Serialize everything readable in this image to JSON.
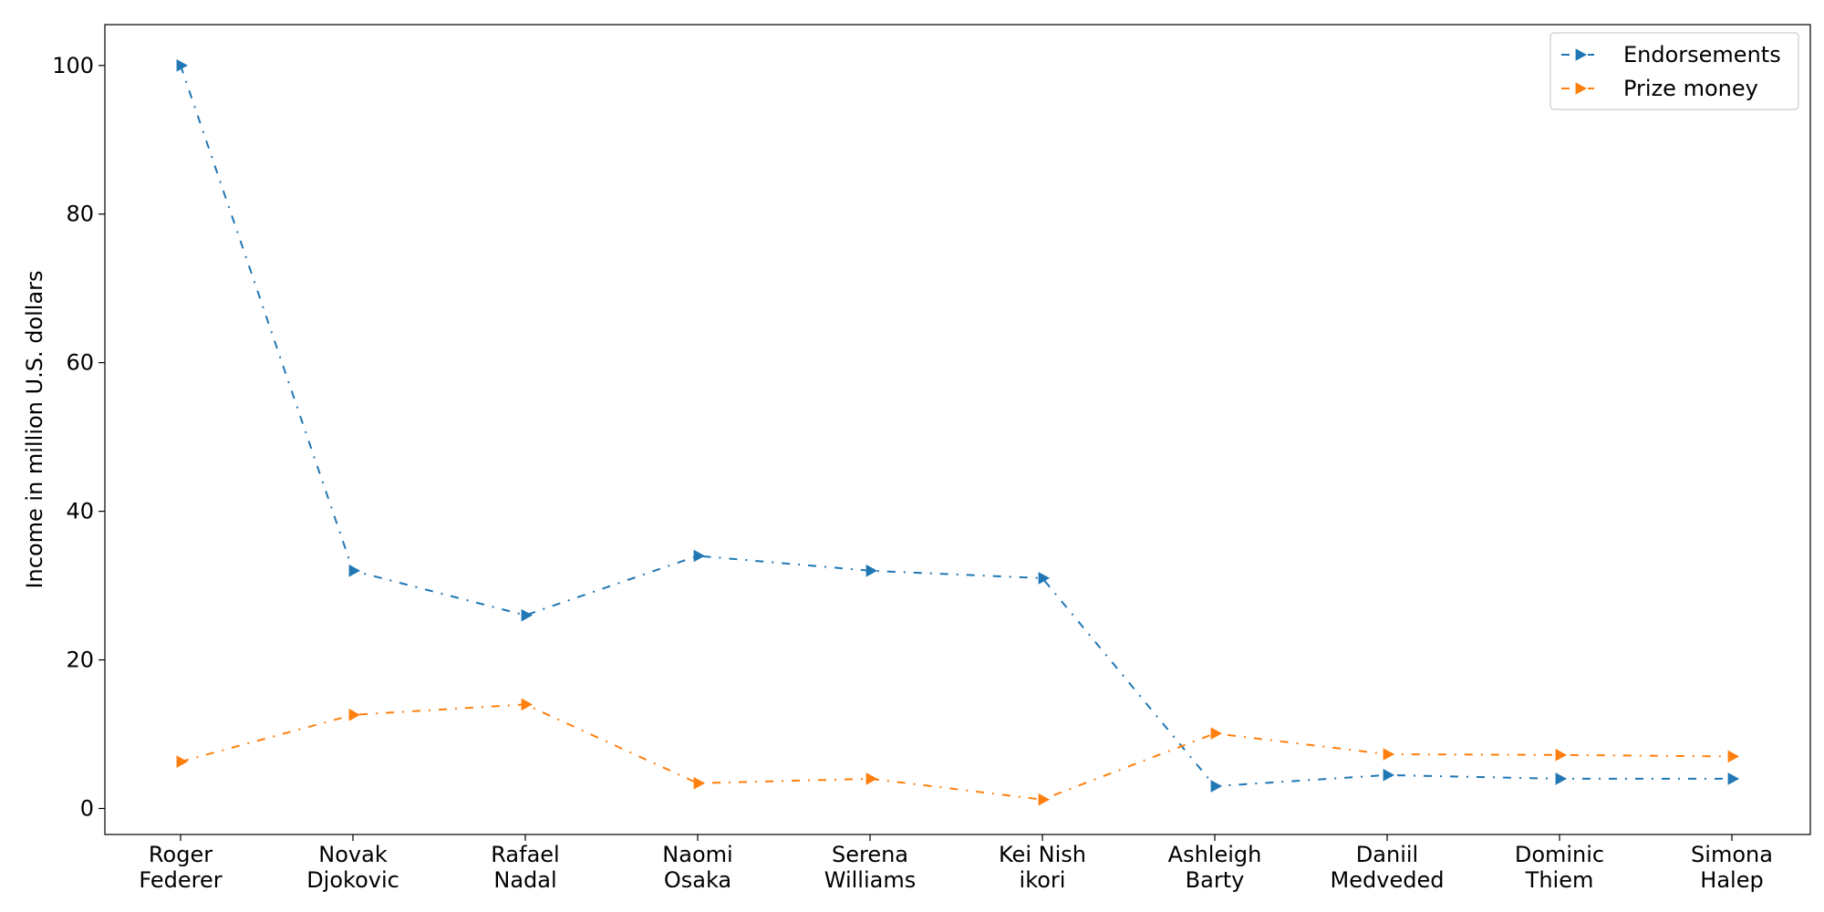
{
  "chart_data": {
    "type": "line",
    "title": "",
    "xlabel": "",
    "ylabel": "Income in million U.S. dollars",
    "categories": [
      [
        "Roger",
        "Federer"
      ],
      [
        "Novak",
        "Djokovic"
      ],
      [
        "Rafael",
        "Nadal"
      ],
      [
        "Naomi",
        "Osaka"
      ],
      [
        "Serena",
        "Williams"
      ],
      [
        "Kei Nish",
        "ikori"
      ],
      [
        "Ashleigh",
        "Barty"
      ],
      [
        "Daniil",
        "Medveded"
      ],
      [
        "Dominic",
        "Thiem"
      ],
      [
        "Simona",
        "Halep"
      ]
    ],
    "ylim": [
      -3.5,
      105.5
    ],
    "yticks": [
      0,
      20,
      40,
      60,
      80,
      100
    ],
    "grid": false,
    "legend_position": "upper right",
    "series": [
      {
        "name": "Endorsements",
        "color": "#1f77b4",
        "marker": "triangle-right",
        "linestyle": "dash-dot",
        "values": [
          100,
          32,
          26,
          34,
          32,
          31,
          3,
          4.5,
          4,
          4
        ]
      },
      {
        "name": "Prize money",
        "color": "#ff7f0e",
        "marker": "triangle-right",
        "linestyle": "dash-dot",
        "values": [
          6.3,
          12.6,
          14,
          3.4,
          4,
          1.2,
          10.1,
          7.3,
          7.2,
          7
        ]
      }
    ]
  }
}
